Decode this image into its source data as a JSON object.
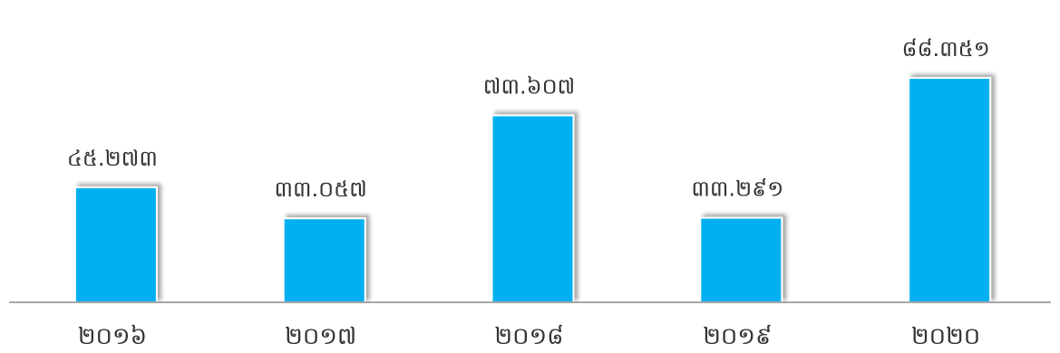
{
  "chart_data": {
    "type": "bar",
    "categories": [
      "២០១៦",
      "២០១៧",
      "២០១៨",
      "២០១៩",
      "២០២០"
    ],
    "values": [
      45273,
      33057,
      73607,
      33291,
      88351
    ],
    "data_labels": [
      "៤៥.២៧៣",
      "៣៣.០៥៧",
      "៧៣.៦០៧",
      "៣៣.២៩១",
      "៨៨.៣៥១"
    ],
    "title": "",
    "xlabel": "",
    "ylabel": "",
    "ylim": [
      0,
      103000
    ],
    "grid": false,
    "legend": "none",
    "colors": {
      "bar": "#00b0f0",
      "axis": "#8c8c8c",
      "text": "#333333"
    }
  }
}
